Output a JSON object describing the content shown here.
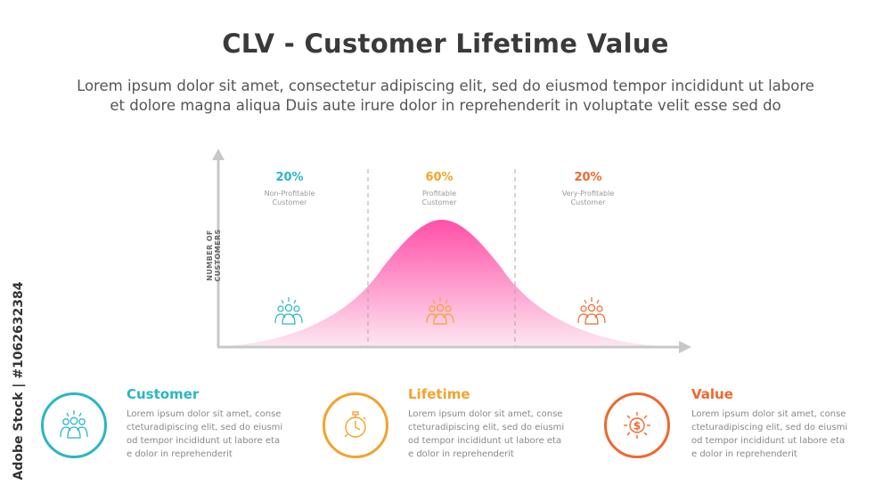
{
  "header": {
    "title": "CLV - Customer Lifetime Value",
    "subtitle_line1": "Lorem ipsum dolor sit amet, consectetur adipiscing elit, sed do eiusmod tempor incididunt ut labore",
    "subtitle_line2": "et dolore magna aliqua Duis aute irure dolor in reprehenderit in voluptate velit esse sed do"
  },
  "chart": {
    "y_axis_label": "NUMBER OF CUSTOMERS",
    "segments": [
      {
        "percent": "20%",
        "label_line1": "Non-Profitable",
        "label_line2": "Customer",
        "color": "#2bb5c7"
      },
      {
        "percent": "60%",
        "label_line1": "Profitable",
        "label_line2": "Customer",
        "color": "#f3a32a"
      },
      {
        "percent": "20%",
        "label_line1": "Very-Profitable",
        "label_line2": "Customer",
        "color": "#f0672e"
      }
    ],
    "curve_color_top": "#ff4fa8",
    "curve_color_bottom": "#fde6f1"
  },
  "cards": [
    {
      "title": "Customer",
      "icon": "people-group-icon",
      "color": "#2bb5c7",
      "text": [
        "Lorem ipsum dolor sit amet, conse",
        "cteturadipiscing elit, sed do eiusmi",
        "od tempor incididunt ut labore eta",
        "e dolor in reprehenderit"
      ]
    },
    {
      "title": "Lifetime",
      "icon": "stopwatch-icon",
      "color": "#f3a32a",
      "text": [
        "Lorem ipsum dolor sit amet, conse",
        "cteturadipiscing elit, sed do eiusmi",
        "od tempor incididunt ut labore eta",
        "e dolor in reprehenderit"
      ]
    },
    {
      "title": "Value",
      "icon": "dollar-coin-icon",
      "color": "#f0672e",
      "text": [
        "Lorem ipsum dolor sit amet, conse",
        "cteturadipiscing elit, sed do eiusmi",
        "od tempor incididunt ut labore eta",
        "e dolor in reprehenderit"
      ]
    }
  ],
  "watermark": {
    "text": "Adobe Stock | #1062632384"
  }
}
